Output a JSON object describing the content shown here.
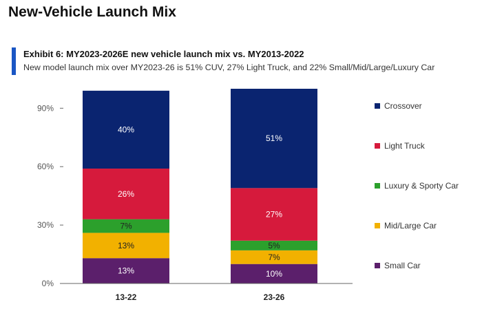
{
  "page_title": "New-Vehicle Launch Mix",
  "exhibit": {
    "title": "Exhibit 6: MY2023-2026E  new vehicle launch mix vs. MY2013-2022",
    "subtitle": "New model launch mix over MY2023-26 is 51% CUV, 27% Light Truck, and 22% Small/Mid/Large/Luxury Car",
    "accent_color": "#1a56c4"
  },
  "chart_data": {
    "type": "bar",
    "stacked": true,
    "categories": [
      "13-22",
      "23-26"
    ],
    "series": [
      {
        "name": "Small Car",
        "color": "#5b1f6b",
        "values": [
          13,
          10
        ],
        "labels": [
          "13%",
          "10%"
        ],
        "label_color": "#ffffff"
      },
      {
        "name": "Mid/Large Car",
        "color": "#f2b100",
        "values": [
          13,
          7
        ],
        "labels": [
          "13%",
          "7%"
        ],
        "label_color": "#222222"
      },
      {
        "name": "Luxury & Sporty Car",
        "color": "#2ca02c",
        "values": [
          7,
          5
        ],
        "labels": [
          "7%",
          "5%"
        ],
        "label_color": "#222222"
      },
      {
        "name": "Light Truck",
        "color": "#d61a3c",
        "values": [
          26,
          27
        ],
        "labels": [
          "26%",
          "27%"
        ],
        "label_color": "#ffffff"
      },
      {
        "name": "Crossover",
        "color": "#0a2470",
        "values": [
          40,
          51
        ],
        "labels": [
          "40%",
          "51%"
        ],
        "label_color": "#ffffff"
      }
    ],
    "legend_order": [
      "Crossover",
      "Light Truck",
      "Luxury & Sporty Car",
      "Mid/Large Car",
      "Small Car"
    ],
    "ylim": [
      0,
      100
    ],
    "yticks": [
      0,
      30,
      60,
      90
    ],
    "ytick_labels": [
      "0%",
      "30%",
      "60%",
      "90%"
    ],
    "grid": false,
    "legend_position": "right"
  }
}
